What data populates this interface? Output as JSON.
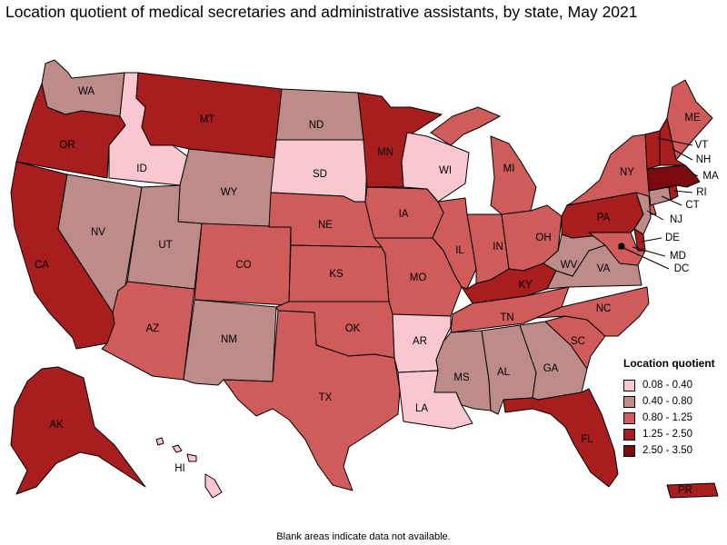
{
  "title": "Location quotient of medical secretaries and administrative assistants, by state, May 2021",
  "footnote": "Blank areas indicate data not available.",
  "legend": {
    "title": "Location quotient",
    "items": [
      {
        "range": "0.08 - 0.40",
        "color": "#f9c7cf"
      },
      {
        "range": "0.40 - 0.80",
        "color": "#bd8c89"
      },
      {
        "range": "0.80 - 1.25",
        "color": "#cf5b5b"
      },
      {
        "range": "1.25 - 2.50",
        "color": "#a81d1e"
      },
      {
        "range": "2.50 - 3.50",
        "color": "#7a0a0e"
      }
    ]
  },
  "chart_data": {
    "type": "choropleth",
    "title": "Location quotient of medical secretaries and administrative assistants, by state, May 2021",
    "legend_placement": "bottom-right",
    "bins": [
      "0.08 - 0.40",
      "0.40 - 0.80",
      "0.80 - 1.25",
      "1.25 - 2.50",
      "2.50 - 3.50"
    ],
    "states": {
      "WA": "0.40 - 0.80",
      "OR": "1.25 - 2.50",
      "CA": "1.25 - 2.50",
      "ID": "0.08 - 0.40",
      "NV": "0.40 - 0.80",
      "MT": "1.25 - 2.50",
      "WY": "0.40 - 0.80",
      "UT": "0.40 - 0.80",
      "AZ": "0.80 - 1.25",
      "CO": "0.80 - 1.25",
      "NM": "0.40 - 0.80",
      "ND": "0.40 - 0.80",
      "SD": "0.08 - 0.40",
      "NE": "0.80 - 1.25",
      "KS": "0.80 - 1.25",
      "OK": "0.80 - 1.25",
      "TX": "0.80 - 1.25",
      "MN": "1.25 - 2.50",
      "IA": "0.80 - 1.25",
      "MO": "0.80 - 1.25",
      "AR": "0.08 - 0.40",
      "LA": "0.08 - 0.40",
      "WI": "0.08 - 0.40",
      "IL": "0.80 - 1.25",
      "MI": "0.80 - 1.25",
      "IN": "0.80 - 1.25",
      "OH": "0.80 - 1.25",
      "KY": "1.25 - 2.50",
      "TN": "0.80 - 1.25",
      "MS": "0.40 - 0.80",
      "AL": "0.40 - 0.80",
      "GA": "0.40 - 0.80",
      "FL": "1.25 - 2.50",
      "SC": "0.80 - 1.25",
      "NC": "0.80 - 1.25",
      "VA": "0.40 - 0.80",
      "WV": "0.40 - 0.80",
      "PA": "1.25 - 2.50",
      "NY": "0.80 - 1.25",
      "NJ": "0.40 - 0.80",
      "DE": "1.25 - 2.50",
      "MD": "0.80 - 1.25",
      "DC": "0.40 - 0.80",
      "CT": "0.40 - 0.80",
      "RI": "1.25 - 2.50",
      "MA": "2.50 - 3.50",
      "VT": "1.25 - 2.50",
      "NH": "1.25 - 2.50",
      "ME": "0.80 - 1.25",
      "AK": "1.25 - 2.50",
      "HI": "0.08 - 0.40",
      "PR": "1.25 - 2.50"
    }
  }
}
